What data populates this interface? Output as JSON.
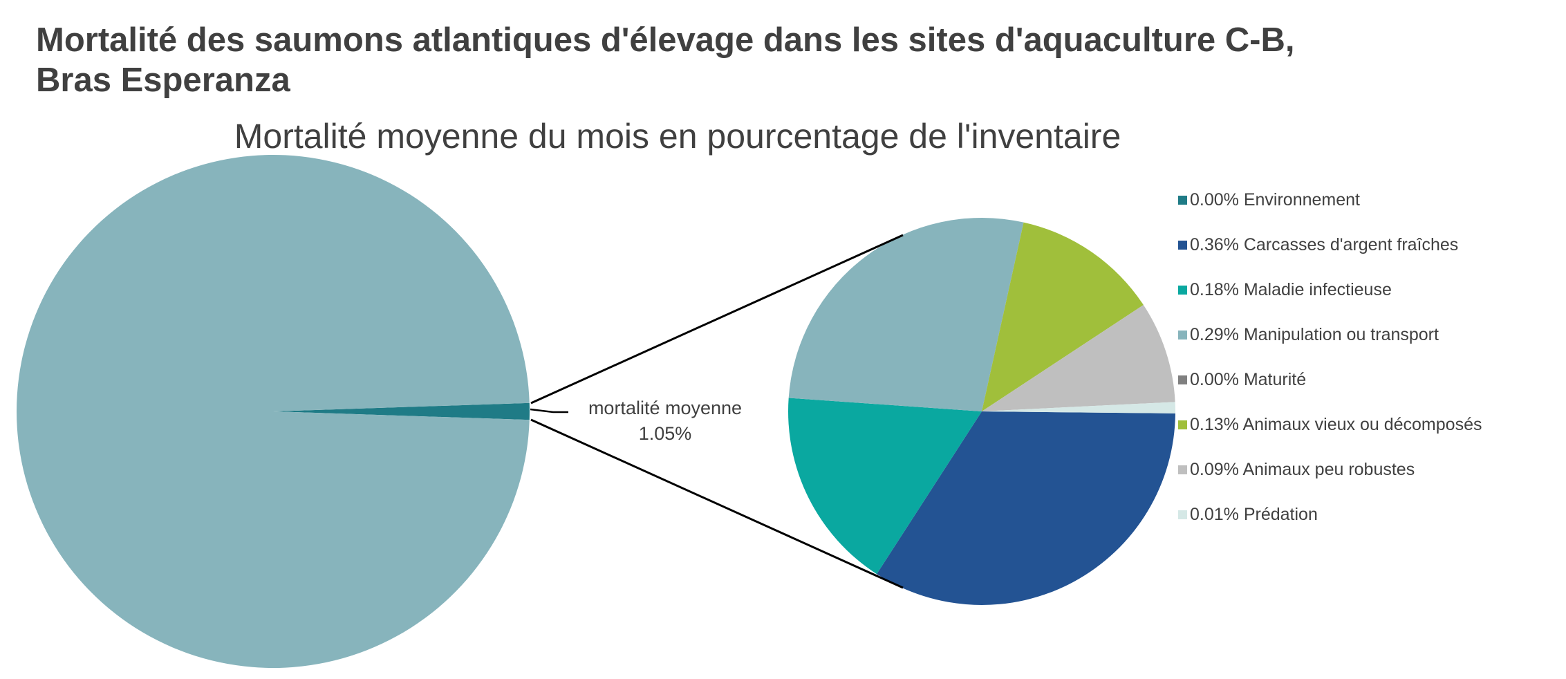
{
  "chart_data": {
    "type": "pie",
    "subtype": "pie-of-pie",
    "title": "Mortalité des saumons atlantiques d'élevage dans les sites d'aquaculture C-B, Bras Esperanza",
    "subtitle": "Mortalité moyenne du mois en pourcentage de l'inventaire",
    "primary_pie": {
      "slices": [
        {
          "value": 98.95,
          "color": "#87b4bc"
        },
        {
          "name": "mortalité moyenne",
          "value": 1.05,
          "value_label": "1.05%",
          "color": "#1f7b86"
        }
      ]
    },
    "secondary_pie": {
      "slices": [
        {
          "name": "Carcasses d'argent fraîches",
          "value": 0.36,
          "color": "#235393"
        },
        {
          "name": "Maladie infectieuse",
          "value": 0.18,
          "color": "#0aa8a0"
        },
        {
          "name": "Manipulation ou transport",
          "value": 0.29,
          "color": "#87b4bc"
        },
        {
          "name": "Animaux vieux ou décomposés",
          "value": 0.13,
          "color": "#a0bf3b"
        },
        {
          "name": "Animaux peu robustes",
          "value": 0.09,
          "color": "#bfbfbf"
        },
        {
          "name": "Prédation",
          "value": 0.01,
          "color": "#d5e8e6"
        },
        {
          "name": "Maturité",
          "value": 0.0,
          "color": "#808080"
        },
        {
          "name": "Environnement",
          "value": 0.0,
          "color": "#1f7b86"
        }
      ]
    },
    "legend_position": "right",
    "legend": [
      {
        "label": "0.00% Environnement",
        "color": "#1f7b86"
      },
      {
        "label": "0.36% Carcasses d'argent fraîches",
        "color": "#235393"
      },
      {
        "label": "0.18% Maladie infectieuse",
        "color": "#0aa8a0"
      },
      {
        "label": "0.29% Manipulation ou transport",
        "color": "#87b4bc"
      },
      {
        "label": "0.00% Maturité",
        "color": "#808080"
      },
      {
        "label": "0.13% Animaux vieux ou décomposés",
        "color": "#a0bf3b"
      },
      {
        "label": "0.09% Animaux peu robustes",
        "color": "#bfbfbf"
      },
      {
        "label": "0.01% Prédation",
        "color": "#d5e8e6"
      }
    ]
  },
  "text": {
    "title_line1": "Mortalité des saumons atlantiques d'élevage dans les sites d'aquaculture C-B,",
    "title_line2": "Bras Esperanza",
    "subtitle": "Mortalité moyenne du mois en pourcentage de l'inventaire",
    "data_label_name": "mortalité moyenne",
    "data_label_value": "1.05%"
  }
}
